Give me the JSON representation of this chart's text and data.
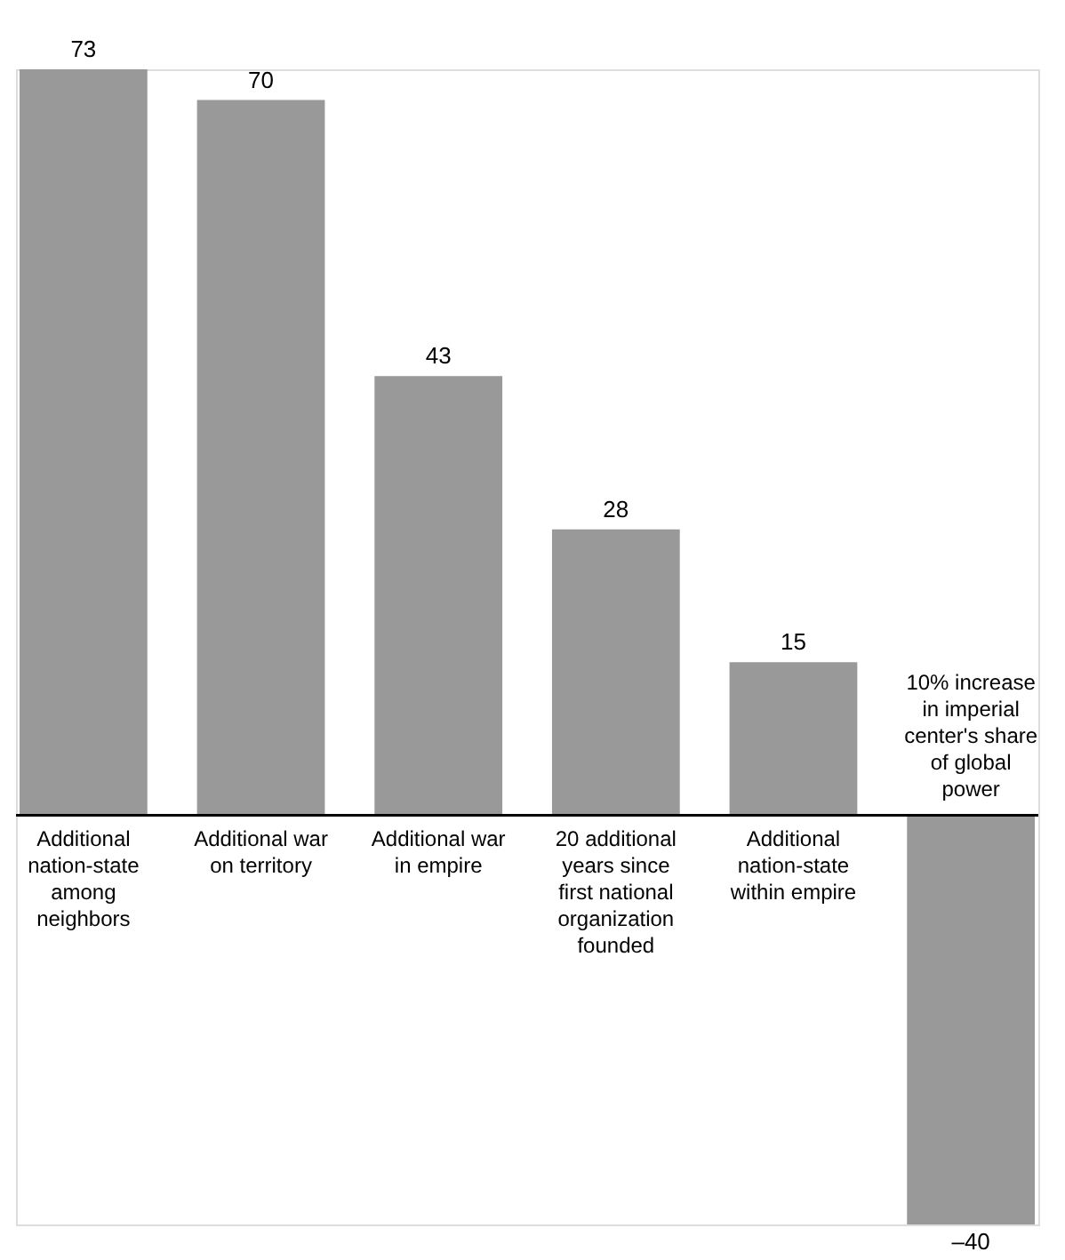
{
  "chart_data": {
    "type": "bar",
    "categories": [
      "Additional nation-state among neighbors",
      "Additional war on territory",
      "Additional war in empire",
      "20 additional years since first national organization founded",
      "Additional nation-state within empire",
      "10% increase in imperial center's share of global power"
    ],
    "values": [
      73,
      70,
      43,
      28,
      15,
      -40
    ],
    "value_labels": [
      "73",
      "70",
      "43",
      "28",
      "15",
      "–40"
    ],
    "color": "#999999"
  }
}
